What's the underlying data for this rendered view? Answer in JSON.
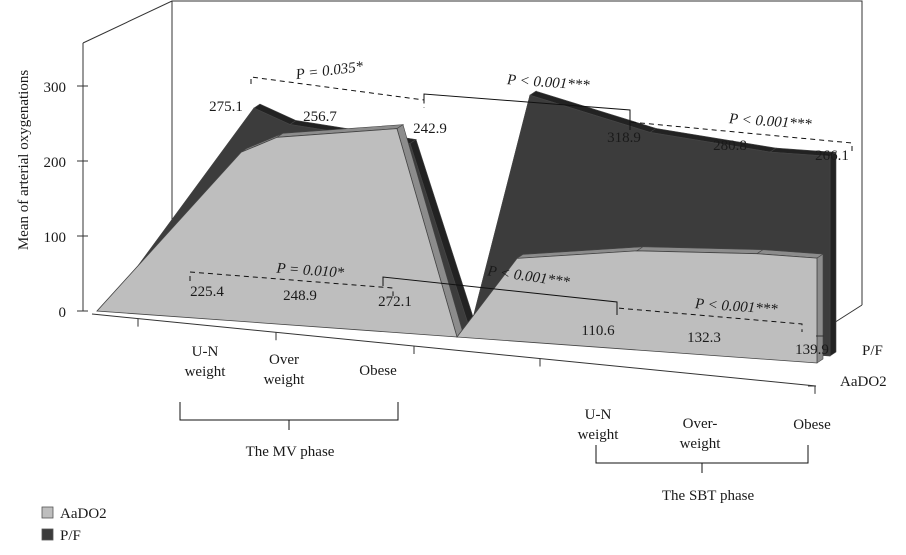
{
  "chart_data": {
    "type": "area",
    "ylabel": "Mean of arterial oxygenations",
    "ylim": [
      0,
      300
    ],
    "yticks": [
      0,
      100,
      200,
      300
    ],
    "categories": [
      {
        "lines": [
          "U-N",
          "weight"
        ]
      },
      {
        "lines": [
          "Over",
          "weight"
        ]
      },
      {
        "lines": [
          "Obese"
        ]
      },
      {
        "lines": [
          "U-N",
          "weight"
        ]
      },
      {
        "lines": [
          "Over-",
          "weight"
        ]
      },
      {
        "lines": [
          "Obese"
        ]
      }
    ],
    "groups": [
      {
        "label": "The MV phase",
        "categories": [
          0,
          1,
          2
        ]
      },
      {
        "label": "The SBT phase",
        "categories": [
          3,
          4,
          5
        ]
      }
    ],
    "depth_axis_labels": [
      "P/F",
      "AaDO2"
    ],
    "series": [
      {
        "name": "AaDO2",
        "color": "#bebebe",
        "values": [
          225.4,
          248.9,
          272.1,
          110.6,
          132.3,
          139.9
        ]
      },
      {
        "name": "P/F",
        "color": "#3c3c3c",
        "values": [
          275.1,
          256.7,
          242.9,
          318.9,
          280.8,
          266.1
        ]
      }
    ],
    "annotations": [
      {
        "text": "P = 0.035*",
        "between": "P/F MV"
      },
      {
        "text": "P < 0.001***",
        "between": "P/F MV vs SBT"
      },
      {
        "text": "P < 0.001***",
        "between": "P/F SBT"
      },
      {
        "text": "P = 0.010*",
        "between": "AaDO2 MV"
      },
      {
        "text": "P < 0.001***",
        "between": "AaDO2 MV vs SBT"
      },
      {
        "text": "P < 0.001***",
        "between": "AaDO2 SBT"
      }
    ],
    "legend": {
      "position": "bottom-left",
      "items": [
        "AaDO2",
        "P/F"
      ]
    },
    "grid": false
  }
}
